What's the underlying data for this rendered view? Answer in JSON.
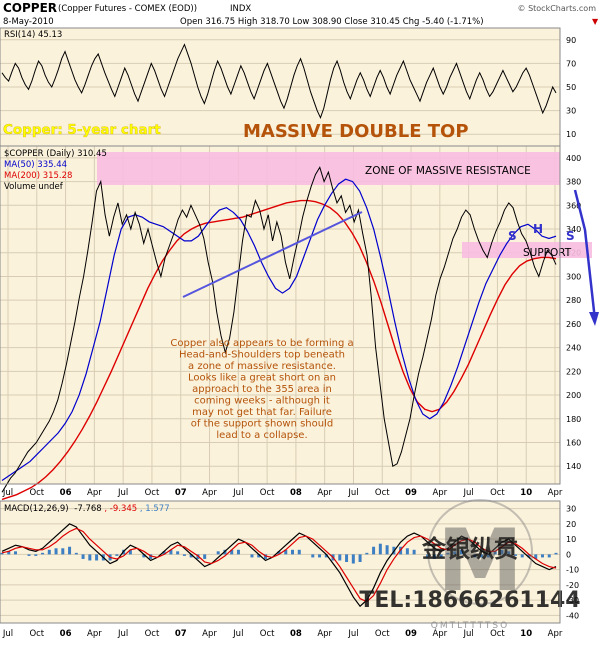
{
  "header": {
    "symbol": "COPPER",
    "name": "(Copper Futures - COMEX (EOD))",
    "type": "INDX",
    "source": "© StockCharts.com",
    "date": "8-May-2010",
    "ohlc": "Open 316.75  High 318.70  Low 308.90  Close 310.45  Chg -5.40 (-1.71%)",
    "ohlc_arrow": "▼"
  },
  "rsi": {
    "label": "RSI(14) 45.13",
    "ticks": [
      "90",
      "70",
      "50",
      "30",
      "10"
    ],
    "tick_values": [
      90,
      70,
      50,
      30,
      10
    ],
    "range": [
      0,
      100
    ],
    "values": [
      62,
      58,
      55,
      63,
      70,
      66,
      58,
      52,
      48,
      55,
      64,
      72,
      68,
      60,
      54,
      50,
      57,
      65,
      74,
      80,
      72,
      64,
      56,
      50,
      45,
      52,
      60,
      68,
      74,
      78,
      70,
      62,
      55,
      48,
      42,
      50,
      58,
      66,
      60,
      52,
      44,
      38,
      46,
      54,
      62,
      70,
      64,
      56,
      48,
      42,
      50,
      58,
      66,
      74,
      80,
      86,
      78,
      70,
      60,
      50,
      42,
      36,
      44,
      54,
      64,
      72,
      66,
      58,
      50,
      44,
      52,
      60,
      68,
      62,
      54,
      46,
      40,
      48,
      56,
      64,
      70,
      62,
      54,
      46,
      38,
      32,
      40,
      50,
      60,
      68,
      74,
      66,
      56,
      46,
      38,
      30,
      24,
      32,
      44,
      56,
      66,
      72,
      64,
      54,
      46,
      40,
      48,
      56,
      62,
      56,
      48,
      42,
      50,
      58,
      64,
      58,
      50,
      44,
      52,
      60,
      66,
      72,
      64,
      56,
      50,
      44,
      38,
      46,
      54,
      60,
      66,
      58,
      50,
      44,
      50,
      58,
      64,
      70,
      62,
      54,
      46,
      40,
      48,
      56,
      62,
      56,
      48,
      42,
      46,
      52,
      58,
      64,
      58,
      52,
      46,
      50,
      56,
      62,
      66,
      60,
      52,
      44,
      36,
      28,
      34,
      42,
      50,
      45
    ]
  },
  "price": {
    "label": "$COPPER (Daily) 310.45",
    "ma50_label": "MA(50) 335.44",
    "ma200_label": "MA(200) 315.28",
    "volume_label": "Volume undef",
    "ticks": [
      "400",
      "380",
      "360",
      "340",
      "320",
      "300",
      "280",
      "260",
      "240",
      "220",
      "200",
      "180",
      "160",
      "140"
    ],
    "tick_values": [
      400,
      380,
      360,
      340,
      320,
      300,
      280,
      260,
      240,
      220,
      200,
      180,
      160,
      140
    ],
    "range": [
      125,
      410
    ],
    "close": [
      118,
      124,
      130,
      134,
      140,
      146,
      152,
      156,
      160,
      166,
      172,
      178,
      186,
      196,
      210,
      226,
      244,
      262,
      282,
      300,
      322,
      346,
      372,
      380,
      352,
      334,
      350,
      362,
      344,
      352,
      340,
      354,
      344,
      328,
      340,
      326,
      312,
      300,
      316,
      326,
      336,
      348,
      356,
      350,
      360,
      352,
      344,
      332,
      312,
      296,
      270,
      250,
      236,
      248,
      270,
      300,
      330,
      352,
      350,
      364,
      356,
      340,
      352,
      330,
      346,
      334,
      312,
      298,
      316,
      332,
      350,
      364,
      376,
      386,
      392,
      380,
      388,
      374,
      362,
      368,
      354,
      360,
      346,
      356,
      336,
      318,
      282,
      240,
      210,
      180,
      160,
      140,
      142,
      152,
      166,
      180,
      200,
      218,
      232,
      248,
      264,
      284,
      298,
      308,
      320,
      332,
      340,
      350,
      356,
      352,
      340,
      330,
      322,
      316,
      328,
      338,
      346,
      356,
      362,
      358,
      346,
      336,
      330,
      320,
      308,
      300,
      312,
      322,
      318,
      310
    ],
    "ma50": [
      128,
      132,
      136,
      140,
      144,
      150,
      156,
      162,
      168,
      176,
      186,
      200,
      218,
      240,
      262,
      290,
      318,
      340,
      350,
      352,
      350,
      346,
      344,
      342,
      338,
      334,
      330,
      330,
      334,
      342,
      350,
      356,
      358,
      354,
      348,
      338,
      326,
      312,
      300,
      290,
      286,
      290,
      300,
      316,
      332,
      348,
      360,
      370,
      378,
      382,
      380,
      372,
      358,
      340,
      316,
      290,
      262,
      236,
      214,
      196,
      184,
      180,
      184,
      194,
      208,
      224,
      242,
      260,
      278,
      294,
      306,
      318,
      328,
      336,
      342,
      344,
      340,
      334,
      332,
      334
    ],
    "ma200": [
      112,
      114,
      116,
      119,
      122,
      126,
      131,
      137,
      144,
      152,
      161,
      171,
      182,
      194,
      207,
      220,
      234,
      248,
      262,
      276,
      290,
      302,
      313,
      322,
      330,
      336,
      340,
      343,
      345,
      346,
      347,
      348,
      349,
      350,
      352,
      354,
      356,
      358,
      360,
      362,
      363,
      364,
      364,
      363,
      361,
      358,
      353,
      346,
      337,
      326,
      312,
      296,
      278,
      258,
      238,
      220,
      205,
      194,
      188,
      186,
      188,
      194,
      203,
      214,
      226,
      240,
      254,
      268,
      281,
      293,
      302,
      309,
      313,
      315,
      316,
      316,
      315
    ]
  },
  "annotations": {
    "title_left": "Copper: 5-year chart",
    "title_main": "MASSIVE DOUBLE TOP",
    "zone_label": "ZONE OF MASSIVE RESISTANCE",
    "support_label": "SUPPORT",
    "hs_s1": "S",
    "hs_h": "H",
    "hs_s2": "S",
    "comment": [
      "Copper also appears to be forming a",
      "Head-and-Shoulders top beneath",
      "a zone of massive resistance.",
      "Looks like a great short on an",
      "approach to the 355 area in",
      "coming weeks - although it",
      "may not get that far. Failure",
      "of the support shown should",
      "lead to a collapse."
    ]
  },
  "macd": {
    "label_prefix": "MACD(12,26,9)",
    "label_macd": "-7.768",
    "label_signal": ", -9.345",
    "label_hist": ", 1.577",
    "ticks": [
      "30",
      "20",
      "10",
      "0",
      "-10",
      "-20",
      "-30",
      "-40"
    ],
    "tick_values": [
      30,
      20,
      10,
      0,
      -10,
      -20,
      -30,
      -40
    ],
    "range": [
      -45,
      35
    ],
    "macd": [
      2,
      4,
      6,
      5,
      3,
      2,
      4,
      8,
      12,
      16,
      20,
      18,
      12,
      6,
      2,
      -2,
      -6,
      -4,
      2,
      6,
      4,
      0,
      -4,
      -2,
      2,
      6,
      8,
      4,
      0,
      -4,
      -8,
      -6,
      -2,
      2,
      6,
      10,
      8,
      4,
      0,
      -4,
      -2,
      2,
      6,
      10,
      14,
      12,
      8,
      4,
      0,
      -6,
      -12,
      -20,
      -28,
      -34,
      -30,
      -22,
      -12,
      -4,
      2,
      8,
      12,
      14,
      12,
      8,
      4,
      2,
      4,
      8,
      12,
      10,
      6,
      2,
      0,
      4,
      8,
      10,
      6,
      2,
      -2,
      -6,
      -8,
      -10,
      -8
    ],
    "signal": [
      1,
      2,
      4,
      5,
      4,
      3,
      3,
      5,
      8,
      12,
      15,
      17,
      15,
      10,
      6,
      2,
      -2,
      -3,
      -1,
      3,
      4,
      2,
      -1,
      -2,
      0,
      3,
      6,
      5,
      2,
      -1,
      -5,
      -6,
      -4,
      -1,
      3,
      7,
      8,
      6,
      2,
      -1,
      -2,
      0,
      3,
      7,
      11,
      12,
      10,
      6,
      2,
      -2,
      -8,
      -15,
      -22,
      -29,
      -31,
      -27,
      -19,
      -10,
      -3,
      3,
      8,
      11,
      12,
      10,
      7,
      4,
      3,
      6,
      9,
      10,
      8,
      4,
      2,
      2,
      5,
      8,
      7,
      4,
      0,
      -3,
      -6,
      -8,
      -9
    ]
  },
  "x_axis": {
    "labels": [
      "Jul",
      "Oct",
      "06",
      "Apr",
      "Jul",
      "Oct",
      "07",
      "Apr",
      "Jul",
      "Oct",
      "08",
      "Apr",
      "Jul",
      "Oct",
      "09",
      "Apr",
      "Jul",
      "Oct",
      "10",
      "Apr"
    ]
  },
  "watermark": {
    "letter": "M",
    "chinese": "金银纵贯",
    "phone": "TEL:18666261144",
    "sub": "QMTLTTTTSO"
  },
  "colors": {
    "price": "#000000",
    "ma50": "#0000cc",
    "ma200": "#dd0000",
    "zone": "#f7bce0",
    "trend": "#5555dd",
    "annotation_text": "#b45309",
    "title_main": "#b45309",
    "title_left": "#ffff00",
    "arrow": "#3333cc",
    "hist": "#3d7fc2"
  }
}
